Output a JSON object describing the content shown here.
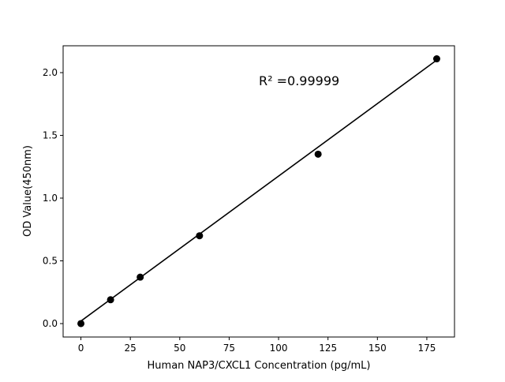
{
  "chart_data": {
    "type": "scatter",
    "title": "",
    "xlabel": "Human NAP3/CXCL1 Concentration (pg/mL)",
    "ylabel": "OD Value(450nm)",
    "xlim": [
      -9,
      189
    ],
    "ylim": [
      -0.107,
      2.214
    ],
    "xticks": [
      0,
      25,
      50,
      75,
      100,
      125,
      150,
      175
    ],
    "yticks": [
      0.0,
      0.5,
      1.0,
      1.5,
      2.0
    ],
    "ytick_labels": [
      "0.0",
      "0.5",
      "1.0",
      "1.5",
      "2.0"
    ],
    "points": {
      "x": [
        0,
        15,
        30,
        60,
        120,
        180
      ],
      "y": [
        0.0,
        0.19,
        0.37,
        0.7,
        1.35,
        2.11
      ]
    },
    "fit_line": {
      "x": [
        0,
        180
      ],
      "y": [
        0.02,
        2.1
      ]
    },
    "annotation": "R² =0.99999",
    "grid": false,
    "colors": {
      "points": "#000000",
      "line": "#000000"
    }
  }
}
